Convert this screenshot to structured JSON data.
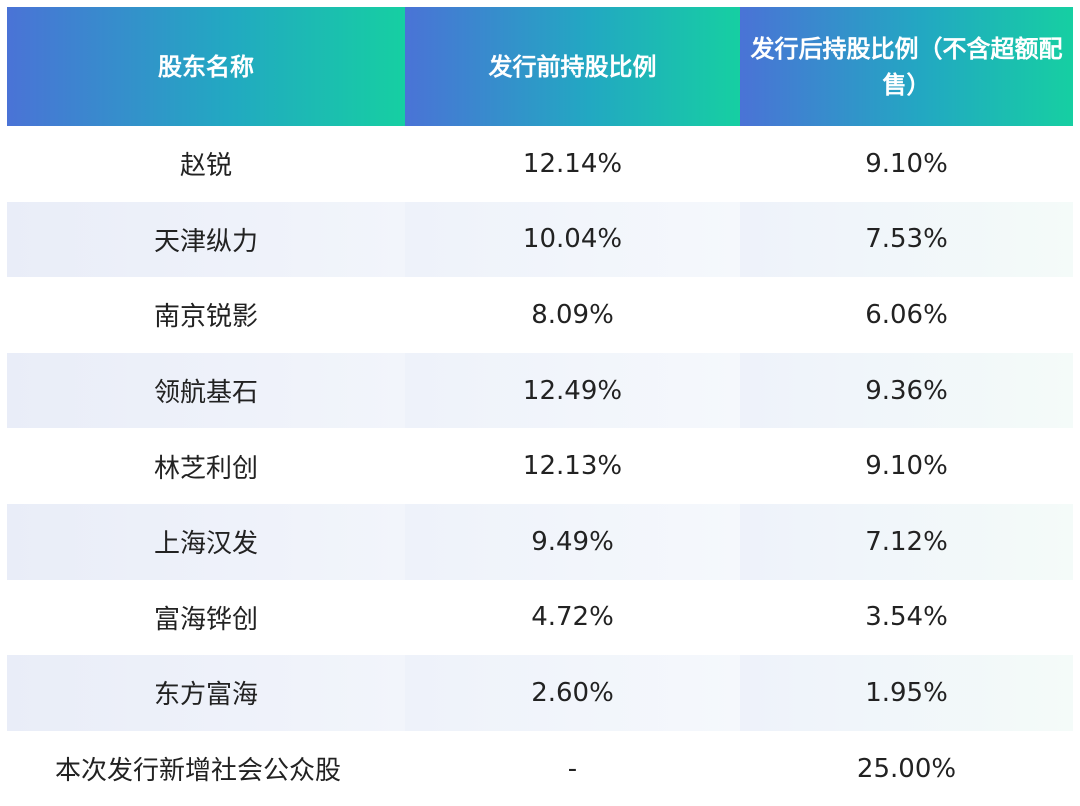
{
  "headers": [
    "股东名称",
    "发行前持股比例",
    "发行后持股比例（不含超额配售）"
  ],
  "rows": [
    {
      "name": "赵锐",
      "before": "12.14%",
      "after": "9.10%"
    },
    {
      "name": "天津纵力",
      "before": "10.04%",
      "after": "7.53%"
    },
    {
      "name": "南京锐影",
      "before": "8.09%",
      "after": "6.06%"
    },
    {
      "name": "领航基石",
      "before": "12.49%",
      "after": "9.36%"
    },
    {
      "name": "林芝利创",
      "before": "12.13%",
      "after": "9.10%"
    },
    {
      "name": "上海汉发",
      "before": "9.49%",
      "after": "7.12%"
    },
    {
      "name": "富海铧创",
      "before": "4.72%",
      "after": "3.54%"
    },
    {
      "name": "东方富海",
      "before": "2.60%",
      "after": "1.95%"
    },
    {
      "name": "本次发行新增社会公众股",
      "before": "-",
      "after": "25.00%"
    }
  ],
  "colors": {
    "header_start": "#4a73d6",
    "header_end": "#16cfa2",
    "alt_row": "#eef2fa"
  }
}
